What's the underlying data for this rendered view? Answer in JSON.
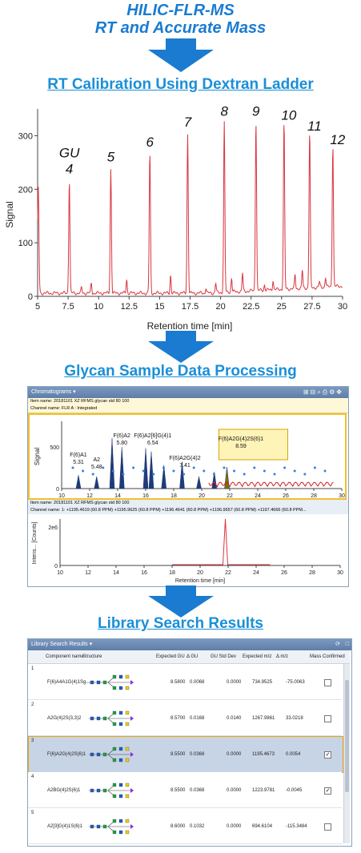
{
  "header": {
    "line1": "HILIC-FLR-MS",
    "line2": "RT and Accurate Mass"
  },
  "section1": {
    "title": "RT Calibration Using Dextran Ladder"
  },
  "section2": {
    "title": "Glycan Sample Data Processing"
  },
  "section3": {
    "title": "Library Search Results"
  },
  "chart_data": [
    {
      "type": "line",
      "xlabel": "Retention time [min]",
      "ylabel": "Signal",
      "xlim": [
        5,
        30
      ],
      "ylim": [
        0,
        350
      ],
      "xticks": [
        "5",
        "7.5",
        "10",
        "12.5",
        "15",
        "17.5",
        "20",
        "22.5",
        "25",
        "27.5",
        "30"
      ],
      "yticks": [
        "0",
        "100",
        "200",
        "300"
      ],
      "series_color": "#d9363e",
      "peaks": [
        {
          "label": "GU\n4",
          "gu": "4",
          "x": 7.6,
          "y": 218
        },
        {
          "label": "5",
          "gu": "5",
          "x": 11.0,
          "y": 240
        },
        {
          "label": "6",
          "gu": "6",
          "x": 14.2,
          "y": 268
        },
        {
          "label": "7",
          "gu": "7",
          "x": 17.3,
          "y": 305
        },
        {
          "label": "8",
          "gu": "8",
          "x": 20.3,
          "y": 325
        },
        {
          "label": "9",
          "gu": "9",
          "x": 22.9,
          "y": 325
        },
        {
          "label": "10",
          "gu": "10",
          "x": 25.2,
          "y": 318
        },
        {
          "label": "11",
          "gu": "11",
          "x": 27.3,
          "y": 298
        },
        {
          "label": "12",
          "gu": "12",
          "x": 29.2,
          "y": 272
        }
      ]
    },
    {
      "type": "line",
      "xlabel": "Signal",
      "xlim": [
        10,
        30
      ],
      "yticks": [
        "0",
        "500"
      ],
      "xticks": [
        "10",
        "12",
        "14",
        "16",
        "18",
        "20",
        "22",
        "24",
        "26",
        "28",
        "30"
      ],
      "labels": [
        {
          "text": "F(6)A1",
          "sub": "5.31",
          "x": 11.2
        },
        {
          "text": "A2",
          "sub": "5.48",
          "x": 12.5
        },
        {
          "text": "F(6)A2",
          "sub": "5.80",
          "x": 14.3
        },
        {
          "text": "F(6)A2[6]G(4)1",
          "sub": "6.54",
          "x": 16.4
        },
        {
          "text": "F(6)A2G(4)2",
          "sub": "7.41",
          "x": 18.8
        },
        {
          "text": "F(6)A2G(4)2S(6)1",
          "sub": "8.59",
          "x": 23.0
        }
      ]
    },
    {
      "type": "line",
      "xlabel": "Retention time [min]",
      "ylabel": "Intens... [Counts]",
      "xlim": [
        10,
        30
      ],
      "yticks": [
        "0",
        "2e6"
      ],
      "xticks": [
        "10",
        "12",
        "14",
        "16",
        "18",
        "20",
        "22",
        "24",
        "26",
        "28",
        "30"
      ],
      "peak_x": 21.8
    }
  ],
  "chromatogram_window": {
    "tab": "Chromatograms",
    "item1": "Item name: 20181101 XZ RFMS glycan std 80 100",
    "channel1": "Channel name: FLR A : Integrated",
    "item2": "Item name: 20181101 XZ RFMS glycan std 80 100",
    "channel2": "Channel name: 1: +1195.4619 (60.8 PPM) +1195.9625 (60.8 PPM) +1196.4641 (60.8 PPM) +1196.9657 (60.8 PPM) +1197.4666 (60.8 PPM...",
    "y_label_top": "Signal",
    "y_label_bottom": "Intens... [Counts]",
    "x_label_bottom": "Retention time [min]"
  },
  "library_window": {
    "tab": "Library Search Results",
    "columns": [
      "Component name",
      "Structure",
      "Expected GU",
      "Δ GU",
      "GU Std Dev",
      "Expected m/z",
      "Δ m/z",
      "Mass Confirmed"
    ],
    "rows": [
      {
        "num": "1",
        "name": "F(6)A4A1G(4)1Sg...",
        "gu": "8.5800",
        "dgu": "0.0068",
        "sd": "0.0000",
        "mz": "734.9525",
        "dmz": "-75.0063",
        "confirmed": false,
        "selected": false
      },
      {
        "num": "2",
        "name": "A2G(4)2S(3,3)2",
        "gu": "8.5700",
        "dgu": "0.0168",
        "sd": "0.0140",
        "mz": "1267.9861",
        "dmz": "33.0218",
        "confirmed": false,
        "selected": false
      },
      {
        "num": "3",
        "name": "F(6)A2G(4)2S(6)1",
        "gu": "8.5500",
        "dgu": "0.0368",
        "sd": "0.0000",
        "mz": "1195.4673",
        "dmz": "0.0054",
        "confirmed": true,
        "selected": true
      },
      {
        "num": "4",
        "name": "A2BG(4)2S(6)1",
        "gu": "8.5500",
        "dgu": "0.0368",
        "sd": "0.0000",
        "mz": "1223.9781",
        "dmz": "-0.0045",
        "confirmed": true,
        "selected": false
      },
      {
        "num": "5",
        "name": "A2[3]G(4)1S(6)1",
        "gu": "8.6000",
        "dgu": "0.1032",
        "sd": "0.0000",
        "mz": "694.6104",
        "dmz": "-115.3484",
        "confirmed": false,
        "selected": false
      }
    ]
  }
}
